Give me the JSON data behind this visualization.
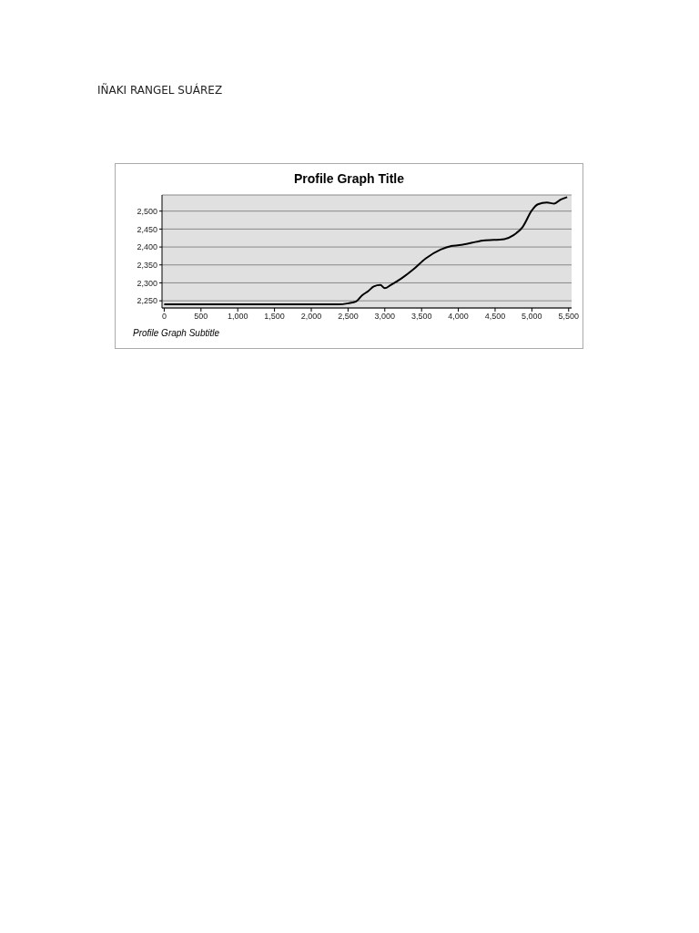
{
  "chart_data": {
    "type": "line",
    "title": "Profile Graph Title",
    "subtitle": "Profile Graph Subtitle",
    "annotations": [
      "IÑAKI RANGEL SUÁREZ"
    ],
    "x": [
      0,
      500,
      1000,
      1500,
      2000,
      2360,
      2505,
      2610,
      2690,
      2775,
      2850,
      2940,
      3000,
      3080,
      3230,
      3390,
      3555,
      3760,
      3905,
      4010,
      4340,
      4625,
      4750,
      4875,
      5000,
      5080,
      5205,
      5305,
      5390,
      5480
    ],
    "series": [
      {
        "color": "#000000",
        "values": [
          2240,
          2240,
          2240,
          2240,
          2240,
          2240,
          2243,
          2248,
          2265,
          2277,
          2290,
          2294,
          2285,
          2294,
          2313,
          2338,
          2368,
          2393,
          2403,
          2405,
          2418,
          2422,
          2433,
          2456,
          2502,
          2519,
          2524,
          2521,
          2532,
          2539
        ]
      }
    ],
    "xlim": [
      -30,
      5540
    ],
    "ylim": [
      2230,
      2545
    ],
    "xticks": [
      0,
      500,
      {
        "value": 1000,
        "label": "1,000"
      },
      {
        "value": 1500,
        "label": "1,500"
      },
      {
        "value": 2000,
        "label": "2,000"
      },
      {
        "value": 2500,
        "label": "2,500"
      },
      {
        "value": 3000,
        "label": "3,000"
      },
      {
        "value": 3500,
        "label": "3,500"
      },
      {
        "value": 4000,
        "label": "4,000"
      },
      {
        "value": 4500,
        "label": "4,500"
      },
      {
        "value": 5000,
        "label": "5,000"
      },
      {
        "value": 5500,
        "label": "5,500"
      }
    ],
    "yticks": [
      {
        "value": 2250,
        "label": "2,250"
      },
      {
        "value": 2300,
        "label": "2,300"
      },
      {
        "value": 2350,
        "label": "2,350"
      },
      {
        "value": 2400,
        "label": "2,400"
      },
      {
        "value": 2450,
        "label": "2,450"
      },
      {
        "value": 2500,
        "label": "2,500"
      }
    ],
    "grid": "y",
    "marker": "none",
    "line_style": "solid"
  }
}
